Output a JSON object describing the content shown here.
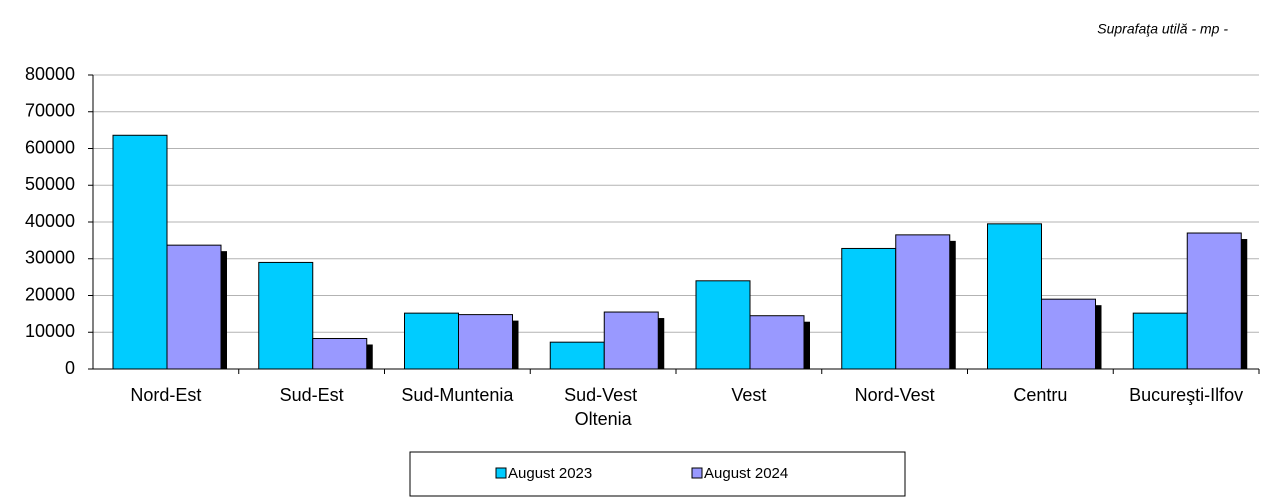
{
  "chart_data": {
    "type": "bar",
    "subtitle": "Suprafaţa utilă - mp -",
    "categories": [
      "Nord-Est",
      "Sud-Est",
      "Sud-Muntenia",
      "Sud-Vest Oltenia",
      "Vest",
      "Nord-Vest",
      "Centru",
      "Bucureşti-Ilfov"
    ],
    "series": [
      {
        "name": "August 2023",
        "color": "#00ccff",
        "values": [
          63600,
          29000,
          15200,
          7300,
          24000,
          32800,
          39500,
          15200
        ]
      },
      {
        "name": "August 2024",
        "color": "#9999ff",
        "values": [
          33700,
          8300,
          14800,
          15500,
          14500,
          36500,
          19000,
          37000
        ]
      }
    ],
    "ylim": [
      0,
      80000
    ],
    "yticks": [
      0,
      10000,
      20000,
      30000,
      40000,
      50000,
      60000,
      70000,
      80000
    ],
    "grid": true,
    "legend": "bottom"
  }
}
